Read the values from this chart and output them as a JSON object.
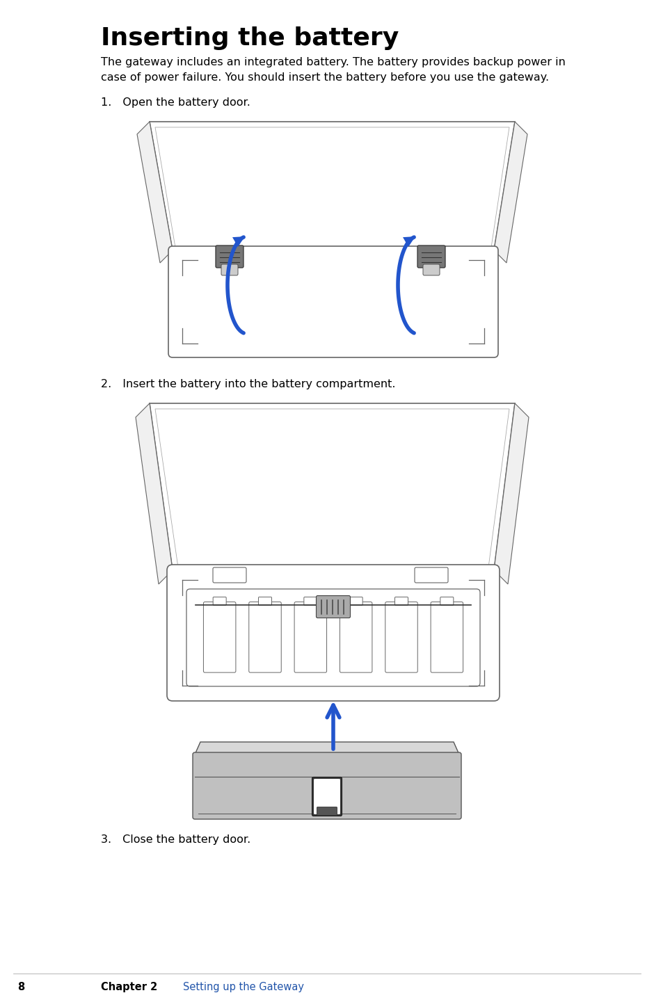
{
  "title": "Inserting the battery",
  "title_fontsize": 26,
  "body_text1": "The gateway includes an integrated battery. The battery provides backup power in",
  "body_text2": "case of power failure. You should insert the battery before you use the gateway.",
  "body_fontsize": 11.5,
  "step1_text": "1. Open the battery door.",
  "step2_text": "2. Insert the battery into the battery compartment.",
  "step3_text": "3. Close the battery door.",
  "step_fontsize": 11.5,
  "footer_num": "8",
  "footer_chapter": "Chapter 2  ",
  "footer_link": "Setting up the Gateway",
  "footer_fontsize": 10.5,
  "bg_color": "#ffffff",
  "text_color": "#000000",
  "blue_color": "#2255aa",
  "arrow_blue": "#2255cc",
  "line_color": "#666666",
  "line_color_light": "#aaaaaa",
  "gray1": "#c0c0c0",
  "gray2": "#d8d8d8",
  "gray3": "#e8e8e8",
  "dark_gray": "#555555"
}
